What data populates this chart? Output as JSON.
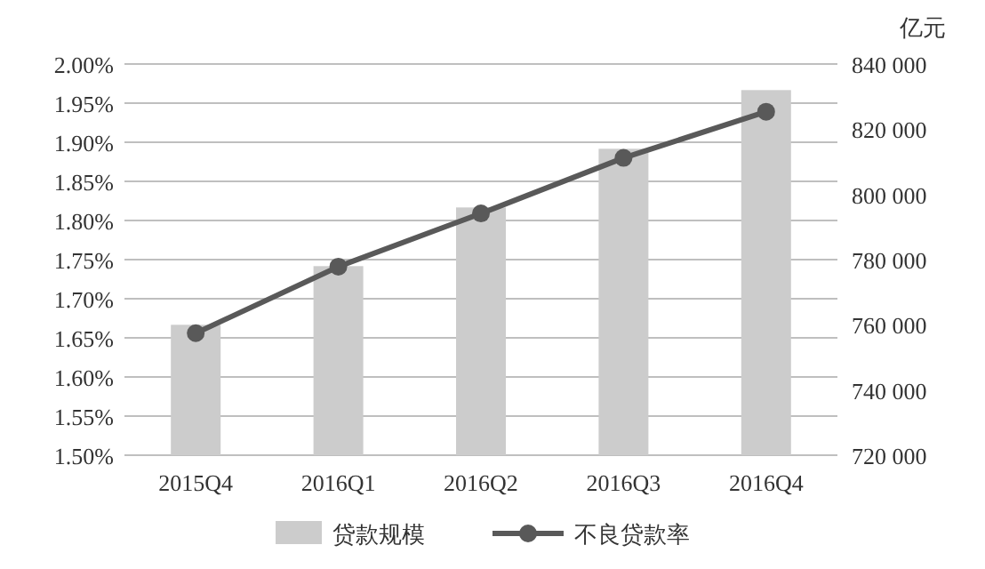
{
  "chart_data": {
    "type": "bar",
    "y2label": "亿元",
    "categories": [
      "2015Q4",
      "2016Q1",
      "2016Q2",
      "2016Q3",
      "2016Q4"
    ],
    "series": [
      {
        "name": "贷款规模",
        "axis": "y2",
        "color": "#cccccc",
        "values": [
          760000,
          778000,
          796000,
          814000,
          832000
        ]
      },
      {
        "name": "不良贷款率",
        "type": "line",
        "color": "#595959",
        "marker": "circle",
        "values": [
          1.656,
          1.741,
          1.809,
          1.88,
          1.939
        ]
      }
    ],
    "ylim": [
      1.5,
      2.0
    ],
    "yticks": [
      {
        "value": 1.5,
        "label": "1.50%"
      },
      {
        "value": 1.55,
        "label": "1.55%"
      },
      {
        "value": 1.6,
        "label": "1.60%"
      },
      {
        "value": 1.65,
        "label": "1.65%"
      },
      {
        "value": 1.7,
        "label": "1.70%"
      },
      {
        "value": 1.75,
        "label": "1.75%"
      },
      {
        "value": 1.8,
        "label": "1.80%"
      },
      {
        "value": 1.85,
        "label": "1.85%"
      },
      {
        "value": 1.9,
        "label": "1.90%"
      },
      {
        "value": 1.95,
        "label": "1.95%"
      },
      {
        "value": 2.0,
        "label": "2.00%"
      }
    ],
    "y2lim": [
      720000,
      840000
    ],
    "y2ticks": [
      {
        "value": 720000,
        "label": "720 000"
      },
      {
        "value": 740000,
        "label": "740 000"
      },
      {
        "value": 760000,
        "label": "760 000"
      },
      {
        "value": 780000,
        "label": "780 000"
      },
      {
        "value": 800000,
        "label": "800 000"
      },
      {
        "value": 820000,
        "label": "820 000"
      },
      {
        "value": 840000,
        "label": "840 000"
      }
    ],
    "grid": "y",
    "legend": "bottom"
  }
}
